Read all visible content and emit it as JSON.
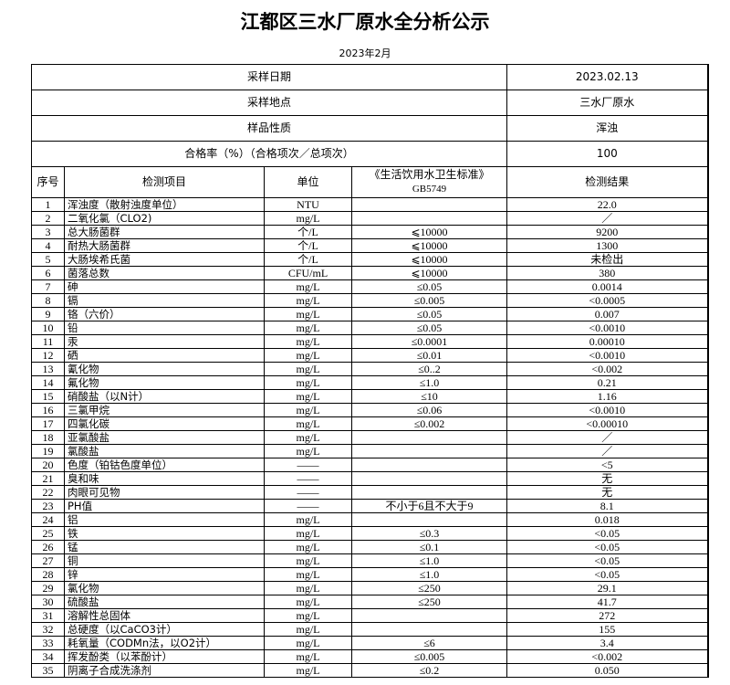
{
  "title": "江都区三水厂原水全分析公示",
  "subtitle": "2023年2月",
  "meta": [
    {
      "label": "采样日期",
      "value": "2023.02.13"
    },
    {
      "label": "采样地点",
      "value": "三水厂原水"
    },
    {
      "label": "样品性质",
      "value": "浑浊"
    },
    {
      "label": "合格率（%）（合格项次／总项次）",
      "value": "100"
    }
  ],
  "headers": {
    "seq": "序号",
    "item": "检测项目",
    "unit": "单位",
    "standard": "《生活饮用水卫生标准》",
    "standard_code": "GB5749",
    "result": "检测结果"
  },
  "rows": [
    [
      "1",
      "浑浊度（散射浊度单位）",
      "NTU",
      "",
      "22.0"
    ],
    [
      "2",
      "二氧化氯（CLO2)",
      "mg/L",
      "",
      "／"
    ],
    [
      "3",
      "总大肠菌群",
      "个/L",
      "⩽10000",
      "9200"
    ],
    [
      "4",
      "耐热大肠菌群",
      "个/L",
      "⩽10000",
      "1300"
    ],
    [
      "5",
      "大肠埃希氏菌",
      "个/L",
      "⩽10000",
      "未检出"
    ],
    [
      "6",
      "菌落总数",
      "CFU/mL",
      "⩽10000",
      "380"
    ],
    [
      "7",
      "砷",
      "mg/L",
      "≤0.05",
      "0.0014"
    ],
    [
      "8",
      "镉",
      "mg/L",
      "≤0.005",
      "<0.0005"
    ],
    [
      "9",
      "铬（六价）",
      "mg/L",
      "≤0.05",
      "0.007"
    ],
    [
      "10",
      "铅",
      "mg/L",
      "≤0.05",
      "<0.0010"
    ],
    [
      "11",
      "汞",
      "mg/L",
      "≤0.0001",
      "0.00010"
    ],
    [
      "12",
      "硒",
      "mg/L",
      "≤0.01",
      "<0.0010"
    ],
    [
      "13",
      "氰化物",
      "mg/L",
      "≤0..2",
      "<0.002"
    ],
    [
      "14",
      "氟化物",
      "mg/L",
      "≤1.0",
      "0.21"
    ],
    [
      "15",
      "硝酸盐（以N计）",
      "mg/L",
      "≤10",
      "1.16"
    ],
    [
      "16",
      "三氯甲烷",
      "mg/L",
      "≤0.06",
      "<0.0010"
    ],
    [
      "17",
      "四氯化碳",
      "mg/L",
      "≤0.002",
      "<0.00010"
    ],
    [
      "18",
      "亚氯酸盐",
      "mg/L",
      "",
      "／"
    ],
    [
      "19",
      "氯酸盐",
      "mg/L",
      "",
      "／"
    ],
    [
      "20",
      "色度（铂钴色度单位）",
      "——",
      "",
      "<5"
    ],
    [
      "21",
      "臭和味",
      "——",
      "",
      "无"
    ],
    [
      "22",
      "肉眼可见物",
      "——",
      "",
      "无"
    ],
    [
      "23",
      "PH值",
      "——",
      "不小于6且不大于9",
      "8.1"
    ],
    [
      "24",
      "铝",
      "mg/L",
      "",
      "0.018"
    ],
    [
      "25",
      "铁",
      "mg/L",
      "≤0.3",
      "<0.05"
    ],
    [
      "26",
      "锰",
      "mg/L",
      "≤0.1",
      "<0.05"
    ],
    [
      "27",
      "铜",
      "mg/L",
      "≤1.0",
      "<0.05"
    ],
    [
      "28",
      "锌",
      "mg/L",
      "≤1.0",
      "<0.05"
    ],
    [
      "29",
      "氯化物",
      "mg/L",
      "≤250",
      "29.1"
    ],
    [
      "30",
      "硫酸盐",
      "mg/L",
      "≤250",
      "41.7"
    ],
    [
      "31",
      "溶解性总固体",
      "mg/L",
      "",
      "272"
    ],
    [
      "32",
      "总硬度（以CaCO3计）",
      "mg/L",
      "",
      "155"
    ],
    [
      "33",
      "耗氧量（CODMn法，以O2计）",
      "mg/L",
      "≤6",
      "3.4"
    ],
    [
      "34",
      "挥发酚类（以苯酚计）",
      "mg/L",
      "≤0.005",
      "<0.002"
    ],
    [
      "35",
      "阴离子合成洗涤剂",
      "mg/L",
      "≤0.2",
      "0.050"
    ]
  ]
}
